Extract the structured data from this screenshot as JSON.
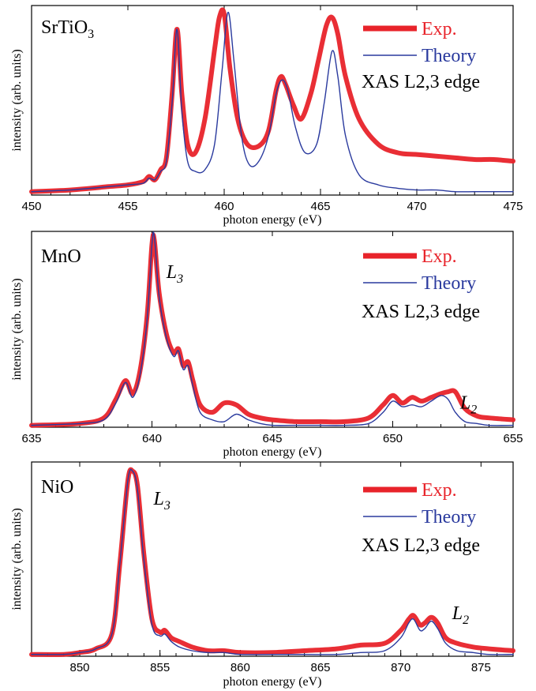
{
  "colors": {
    "experiment": "#e8232a",
    "theory": "#2a3a9e",
    "axis": "#000000"
  },
  "chart_data": [
    {
      "type": "line",
      "title": "SrTiO3",
      "title_sub": "3",
      "xlabel": "photon energy (eV)",
      "ylabel": "intensity (arb. units)",
      "xlim": [
        450,
        475
      ],
      "ylim": [
        0,
        1.12
      ],
      "xticks": [
        450,
        455,
        460,
        465,
        470,
        475
      ],
      "grid": false,
      "legend_position": "top-right",
      "legend": [
        "Exp.",
        "Theory"
      ],
      "legend_note": "XAS L2,3 edge",
      "annotations": [],
      "series": [
        {
          "name": "Exp.",
          "x": [
            450,
            452,
            454,
            455,
            455.8,
            456.1,
            456.4,
            456.7,
            457,
            457.3,
            457.55,
            457.8,
            458.1,
            458.5,
            459,
            459.5,
            459.75,
            460,
            460.3,
            460.7,
            461.2,
            461.8,
            462.3,
            462.7,
            462.95,
            463.2,
            463.6,
            464,
            464.5,
            464.9,
            465.3,
            465.6,
            465.9,
            466.3,
            467,
            468,
            469,
            470,
            471,
            472,
            473,
            474,
            475
          ],
          "values": [
            0.02,
            0.03,
            0.05,
            0.06,
            0.08,
            0.11,
            0.09,
            0.15,
            0.22,
            0.6,
            0.98,
            0.6,
            0.3,
            0.25,
            0.45,
            0.86,
            1.05,
            1.07,
            0.75,
            0.45,
            0.3,
            0.29,
            0.38,
            0.62,
            0.7,
            0.65,
            0.53,
            0.45,
            0.6,
            0.8,
            1.0,
            1.05,
            0.95,
            0.7,
            0.45,
            0.3,
            0.25,
            0.24,
            0.23,
            0.22,
            0.21,
            0.21,
            0.2
          ]
        },
        {
          "name": "Theory",
          "x": [
            450,
            452,
            454,
            455,
            455.8,
            456.1,
            456.4,
            456.7,
            457,
            457.3,
            457.55,
            457.8,
            458.1,
            458.5,
            459,
            459.5,
            459.9,
            460.2,
            460.5,
            460.9,
            461.3,
            461.8,
            462.3,
            462.7,
            463,
            463.3,
            463.7,
            464.2,
            464.8,
            465.2,
            465.6,
            465.9,
            466.3,
            467,
            468,
            469,
            470,
            471,
            472,
            473,
            474,
            475
          ],
          "values": [
            0.02,
            0.03,
            0.05,
            0.06,
            0.07,
            0.1,
            0.09,
            0.14,
            0.2,
            0.55,
            0.98,
            0.5,
            0.2,
            0.14,
            0.15,
            0.3,
            0.75,
            1.08,
            0.8,
            0.35,
            0.18,
            0.2,
            0.35,
            0.6,
            0.68,
            0.62,
            0.4,
            0.25,
            0.3,
            0.55,
            0.85,
            0.7,
            0.35,
            0.12,
            0.06,
            0.04,
            0.03,
            0.03,
            0.02,
            0.02,
            0.02,
            0.02
          ]
        }
      ]
    },
    {
      "type": "line",
      "title": "MnO",
      "xlabel": "photon energy (eV)",
      "ylabel": "intensity (arb. units)",
      "xlim": [
        635,
        655
      ],
      "ylim": [
        0,
        1.05
      ],
      "xticks": [
        635,
        640,
        645,
        650,
        655
      ],
      "grid": false,
      "legend_position": "top-right",
      "legend": [
        "Exp.",
        "Theory"
      ],
      "legend_note": "XAS L2,3 edge",
      "annotations": [
        {
          "text": "L",
          "sub": "3",
          "x": 640.6,
          "y": 0.8
        },
        {
          "text": "L",
          "sub": "2",
          "x": 652.8,
          "y": 0.1
        }
      ],
      "series": [
        {
          "name": "Exp.",
          "x": [
            635,
            637,
            638,
            638.5,
            638.9,
            639.2,
            639.5,
            639.8,
            640,
            640.1,
            640.3,
            640.6,
            640.9,
            641.1,
            641.3,
            641.5,
            641.7,
            642,
            642.5,
            643,
            643.5,
            644,
            644.5,
            645,
            646,
            647,
            648,
            649,
            649.6,
            650,
            650.4,
            650.8,
            651.2,
            651.6,
            652,
            652.3,
            652.6,
            653,
            653.5,
            654,
            655
          ],
          "values": [
            0.01,
            0.02,
            0.05,
            0.15,
            0.25,
            0.18,
            0.3,
            0.6,
            0.98,
            1.0,
            0.72,
            0.5,
            0.4,
            0.42,
            0.33,
            0.35,
            0.25,
            0.12,
            0.08,
            0.13,
            0.12,
            0.07,
            0.05,
            0.04,
            0.03,
            0.03,
            0.03,
            0.05,
            0.12,
            0.17,
            0.13,
            0.16,
            0.14,
            0.16,
            0.18,
            0.19,
            0.19,
            0.1,
            0.06,
            0.05,
            0.04
          ]
        },
        {
          "name": "Theory",
          "x": [
            635,
            637,
            638,
            638.5,
            638.9,
            639.2,
            639.5,
            639.8,
            640,
            640.1,
            640.3,
            640.6,
            640.9,
            641.1,
            641.3,
            641.5,
            641.7,
            642,
            642.5,
            643,
            643.5,
            644,
            644.5,
            645,
            646,
            647,
            648,
            649,
            649.6,
            650,
            650.4,
            650.8,
            651.2,
            651.6,
            652,
            652.3,
            652.6,
            653,
            653.5,
            654,
            655
          ],
          "values": [
            0.01,
            0.02,
            0.04,
            0.13,
            0.24,
            0.16,
            0.28,
            0.58,
            0.98,
            1.02,
            0.7,
            0.48,
            0.38,
            0.41,
            0.31,
            0.33,
            0.22,
            0.08,
            0.04,
            0.03,
            0.07,
            0.04,
            0.02,
            0.01,
            0.01,
            0.01,
            0.01,
            0.02,
            0.08,
            0.14,
            0.11,
            0.12,
            0.11,
            0.14,
            0.17,
            0.15,
            0.08,
            0.03,
            0.02,
            0.01,
            0.01
          ]
        }
      ]
    },
    {
      "type": "line",
      "title": "NiO",
      "xlabel": "photon energy (eV)",
      "ylabel": "intensity (arb. units)",
      "xlim": [
        847,
        877
      ],
      "ylim": [
        0,
        1.05
      ],
      "xticks": [
        850,
        855,
        860,
        865,
        870,
        875
      ],
      "grid": false,
      "legend_position": "top-right",
      "legend": [
        "Exp.",
        "Theory"
      ],
      "legend_note": "XAS L2,3 edge",
      "annotations": [
        {
          "text": "L",
          "sub": "3",
          "x": 854.6,
          "y": 0.82
        },
        {
          "text": "L",
          "sub": "2",
          "x": 873.2,
          "y": 0.2
        }
      ],
      "series": [
        {
          "name": "Exp.",
          "x": [
            847,
            849,
            850,
            851,
            852,
            852.5,
            853,
            853.3,
            853.6,
            854,
            854.5,
            855,
            855.3,
            855.7,
            856.2,
            857,
            858,
            859,
            860,
            862,
            864,
            866,
            867.5,
            869,
            870,
            870.5,
            870.8,
            871.2,
            871.5,
            871.9,
            872.3,
            872.8,
            873.5,
            874.5,
            875.5,
            877
          ],
          "values": [
            0.01,
            0.01,
            0.02,
            0.04,
            0.12,
            0.5,
            0.95,
            1.0,
            0.92,
            0.55,
            0.2,
            0.13,
            0.14,
            0.1,
            0.08,
            0.05,
            0.03,
            0.03,
            0.02,
            0.02,
            0.03,
            0.04,
            0.06,
            0.07,
            0.14,
            0.2,
            0.22,
            0.17,
            0.18,
            0.21,
            0.18,
            0.1,
            0.07,
            0.05,
            0.04,
            0.03
          ]
        },
        {
          "name": "Theory",
          "x": [
            847,
            849,
            850,
            851,
            852,
            852.5,
            853,
            853.3,
            853.6,
            854,
            854.5,
            855,
            855.3,
            855.7,
            856.2,
            857,
            858,
            859,
            860,
            862,
            864,
            866,
            867.5,
            869,
            870,
            870.5,
            870.8,
            871.2,
            871.5,
            871.9,
            872.3,
            872.8,
            873.5,
            874.5,
            875.5,
            877
          ],
          "values": [
            0.01,
            0.01,
            0.02,
            0.04,
            0.12,
            0.5,
            0.95,
            1.0,
            0.9,
            0.52,
            0.17,
            0.11,
            0.12,
            0.08,
            0.05,
            0.03,
            0.02,
            0.02,
            0.01,
            0.01,
            0.01,
            0.01,
            0.02,
            0.03,
            0.1,
            0.18,
            0.2,
            0.14,
            0.15,
            0.19,
            0.15,
            0.07,
            0.03,
            0.02,
            0.01,
            0.01
          ]
        }
      ]
    }
  ]
}
